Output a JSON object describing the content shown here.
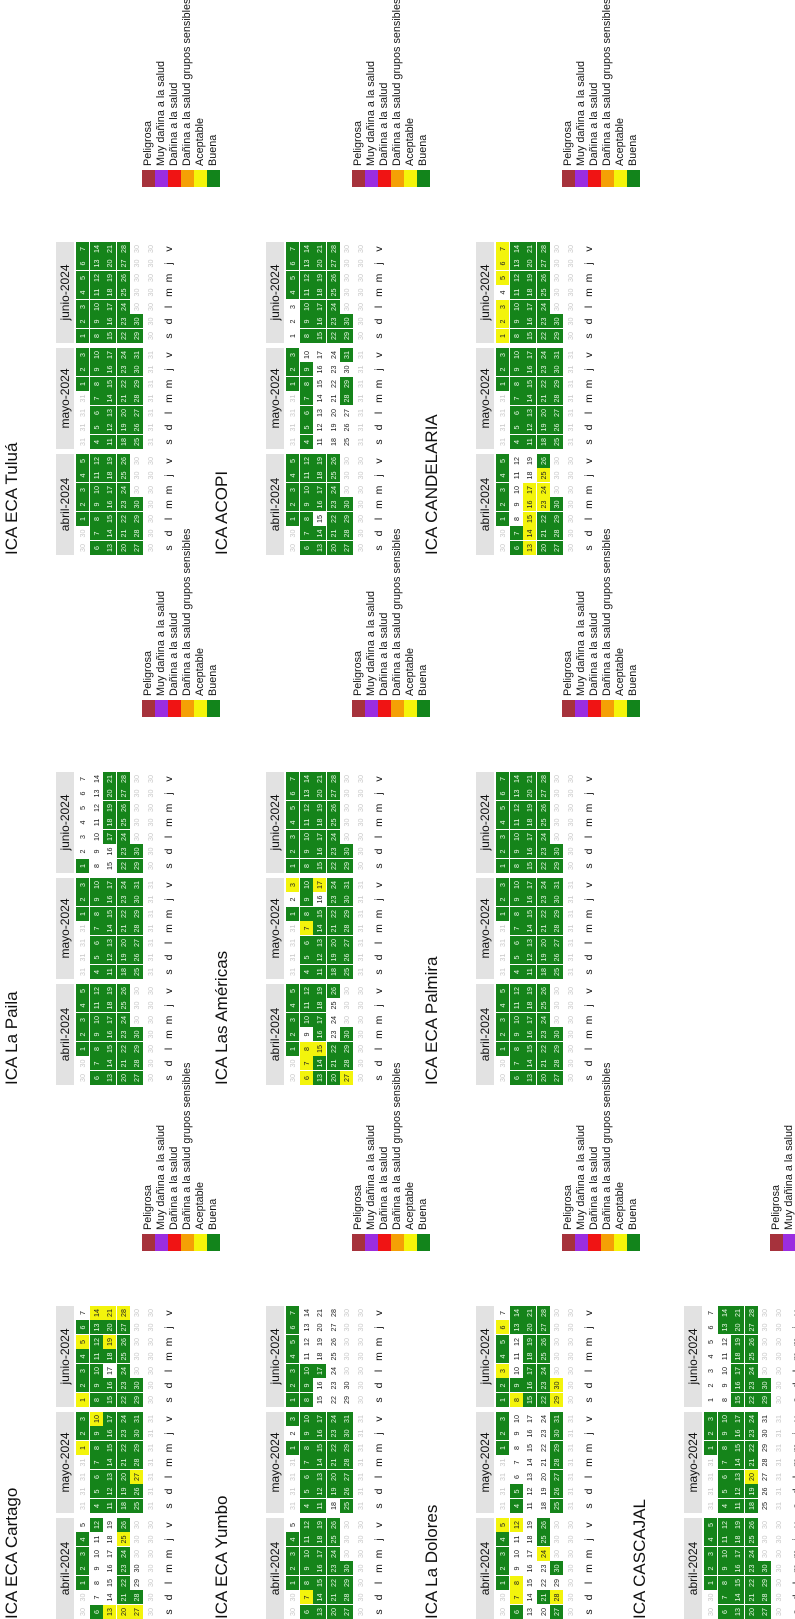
{
  "dow_labels": [
    "s",
    "d",
    "l",
    "m",
    "m",
    "j",
    "v"
  ],
  "legend": [
    {
      "label": "Peligrosa",
      "color": "#a6323c"
    },
    {
      "label": "Muy dañina a la salud",
      "color": "#9b2de0"
    },
    {
      "label": "Dañina a la salud",
      "color": "#f01414"
    },
    {
      "label": "Dañina a la salud grupos sensibles",
      "color": "#f5a005"
    },
    {
      "label": "Aceptable",
      "color": "#f5f50a"
    },
    {
      "label": "Buena",
      "color": "#12841b"
    }
  ],
  "stations": [
    {
      "title": "ICA ECA Cartago",
      "months": [
        {
          "label": "abril-2024",
          "first_dow": 2,
          "days": 30,
          "yellow": [
            13,
            20,
            25,
            27
          ],
          "white": [
            5,
            7,
            8,
            9,
            10,
            11,
            14,
            15,
            16,
            17,
            18,
            19,
            29,
            30
          ],
          "trail": 30
        },
        {
          "label": "mayo-2024",
          "first_dow": 4,
          "days": 31,
          "yellow": [
            1,
            10,
            27
          ],
          "white": [],
          "trail": 31
        },
        {
          "label": "junio-2024",
          "first_dow": 0,
          "days": 30,
          "yellow": [
            1,
            5,
            14,
            19,
            21,
            28
          ],
          "white": [
            7,
            17
          ],
          "trail": 30
        }
      ]
    },
    {
      "title": "ICA ECA Yumbo",
      "months": [
        {
          "label": "abril-2024",
          "first_dow": 2,
          "days": 30,
          "yellow": [
            7
          ],
          "white": [
            5
          ],
          "trail": 30
        },
        {
          "label": "mayo-2024",
          "first_dow": 4,
          "days": 31,
          "yellow": [],
          "white": [
            2,
            18
          ],
          "trail": 31
        },
        {
          "label": "junio-2024",
          "first_dow": 0,
          "days": 30,
          "yellow": [],
          "white": [
            11,
            12,
            13,
            14,
            15,
            16,
            18,
            19,
            20,
            21,
            22,
            23,
            24,
            25,
            26,
            27,
            28,
            29,
            30
          ],
          "trail": 30
        }
      ]
    },
    {
      "title": "ICA La Dolores",
      "months": [
        {
          "label": "abril-2024",
          "first_dow": 2,
          "days": 30,
          "yellow": [
            5,
            7,
            8,
            12,
            24,
            28
          ],
          "white": [
            9,
            10,
            11,
            13,
            14,
            15,
            16,
            17,
            18,
            19,
            20,
            22,
            23,
            29
          ],
          "trail": 30
        },
        {
          "label": "mayo-2024",
          "first_dow": 4,
          "days": 31,
          "yellow": [],
          "white": [
            6,
            7,
            8,
            9,
            10,
            11,
            12,
            13,
            14,
            15,
            16,
            17,
            18,
            19,
            20,
            21,
            22,
            23,
            24
          ],
          "trail": 31
        },
        {
          "label": "junio-2024",
          "first_dow": 0,
          "days": 30,
          "yellow": [
            3,
            6,
            8,
            29,
            30
          ],
          "white": [
            7,
            10,
            11,
            12
          ],
          "trail": 30
        }
      ]
    },
    {
      "title": "ICA CASCAJAL",
      "months": [
        {
          "label": "abril-2024",
          "first_dow": 2,
          "days": 30,
          "yellow": [],
          "white": [],
          "trail": 30
        },
        {
          "label": "mayo-2024",
          "first_dow": 4,
          "days": 31,
          "yellow": [
            20
          ],
          "white": [
            25,
            26,
            27,
            28,
            29,
            30,
            31
          ],
          "trail": 31
        },
        {
          "label": "junio-2024",
          "first_dow": 0,
          "days": 30,
          "yellow": [],
          "white": [
            1,
            2,
            3,
            4,
            5,
            6,
            7,
            8,
            9,
            10,
            11,
            12
          ],
          "trail": 30
        }
      ]
    },
    {
      "title": "ICA La Paila",
      "months": [
        {
          "label": "abril-2024",
          "first_dow": 2,
          "days": 30,
          "yellow": [],
          "white": [],
          "trail": 30
        },
        {
          "label": "mayo-2024",
          "first_dow": 4,
          "days": 31,
          "yellow": [],
          "white": [],
          "trail": 31
        },
        {
          "label": "junio-2024",
          "first_dow": 0,
          "days": 30,
          "yellow": [],
          "white": [
            2,
            3,
            4,
            5,
            6,
            7,
            8,
            9,
            10,
            11,
            12,
            13,
            14,
            15,
            16
          ],
          "trail": 30
        }
      ]
    },
    {
      "title": "ICA Las Américas",
      "months": [
        {
          "label": "abril-2024",
          "first_dow": 2,
          "days": 30,
          "yellow": [
            6,
            7,
            8,
            15,
            27
          ],
          "white": [
            9,
            23,
            24,
            25
          ],
          "trail": 30
        },
        {
          "label": "mayo-2024",
          "first_dow": 4,
          "days": 31,
          "yellow": [
            3,
            7,
            17
          ],
          "white": [
            2,
            16
          ],
          "trail": 31
        },
        {
          "label": "junio-2024",
          "first_dow": 0,
          "days": 30,
          "yellow": [],
          "white": [],
          "trail": 30
        }
      ]
    },
    {
      "title": "ICA ECA Palmira",
      "months": [
        {
          "label": "abril-2024",
          "first_dow": 2,
          "days": 30,
          "yellow": [],
          "white": [],
          "trail": 30
        },
        {
          "label": "mayo-2024",
          "first_dow": 4,
          "days": 31,
          "yellow": [],
          "white": [],
          "trail": 31
        },
        {
          "label": "junio-2024",
          "first_dow": 0,
          "days": 30,
          "yellow": [],
          "white": [],
          "trail": 30
        }
      ]
    },
    {
      "title": "ICA ECA Tuluá",
      "months": [
        {
          "label": "abril-2024",
          "first_dow": 2,
          "days": 30,
          "yellow": [],
          "white": [],
          "trail": 30
        },
        {
          "label": "mayo-2024",
          "first_dow": 4,
          "days": 31,
          "yellow": [],
          "white": [],
          "trail": 31
        },
        {
          "label": "junio-2024",
          "first_dow": 0,
          "days": 30,
          "yellow": [],
          "white": [],
          "trail": 30
        }
      ]
    },
    {
      "title": "ICA ACOPI",
      "months": [
        {
          "label": "abril-2024",
          "first_dow": 2,
          "days": 30,
          "yellow": [],
          "white": [
            15
          ],
          "trail": 30
        },
        {
          "label": "mayo-2024",
          "first_dow": 4,
          "days": 31,
          "yellow": [],
          "white": [
            10,
            11,
            12,
            13,
            14,
            15,
            16,
            17,
            18,
            19,
            20,
            21,
            22,
            23,
            24,
            25,
            26,
            27,
            30
          ],
          "trail": 31
        },
        {
          "label": "junio-2024",
          "first_dow": 0,
          "days": 30,
          "yellow": [],
          "white": [
            1,
            2,
            3
          ],
          "trail": 30
        }
      ]
    },
    {
      "title": "ICA CANDELARIA",
      "months": [
        {
          "label": "abril-2024",
          "first_dow": 2,
          "days": 30,
          "yellow": [
            13,
            14,
            15,
            16,
            17,
            23,
            24,
            25
          ],
          "white": [
            8,
            9,
            10,
            11,
            12,
            18,
            19
          ],
          "trail": 30
        },
        {
          "label": "mayo-2024",
          "first_dow": 4,
          "days": 31,
          "yellow": [],
          "white": [],
          "trail": 31
        },
        {
          "label": "junio-2024",
          "first_dow": 0,
          "days": 30,
          "yellow": [
            1,
            2,
            3,
            5,
            6,
            7
          ],
          "white": [
            4
          ],
          "trail": 30
        }
      ]
    }
  ]
}
